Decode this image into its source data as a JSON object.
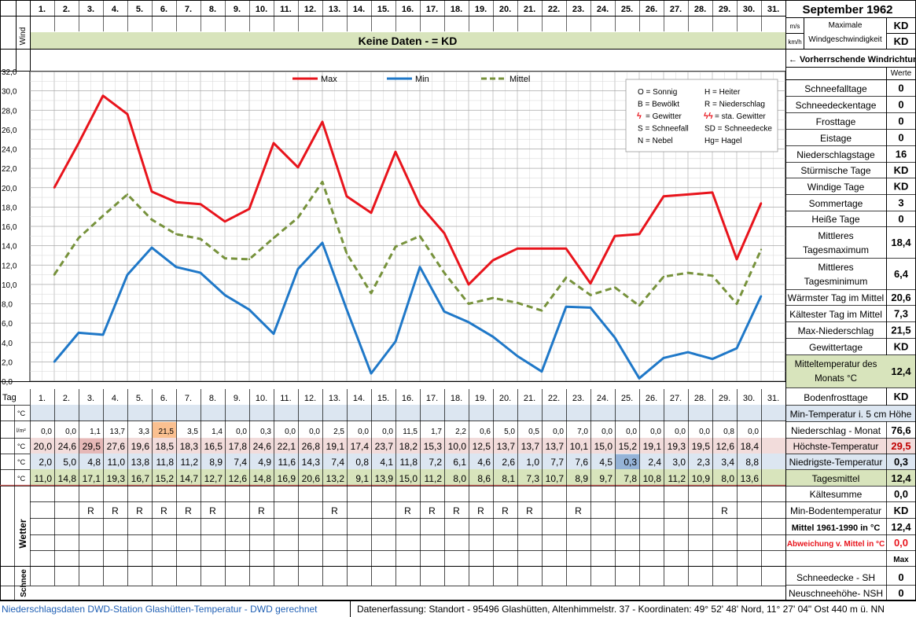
{
  "title": "September 1962",
  "wind": {
    "row_label": "Wind",
    "unit_ms": "m/s",
    "unit_kmh": "km/h",
    "max_label_1": "Maximale",
    "max_label_2": "Windgeschwindigkeit",
    "max_value": "KD",
    "max_value_2": "KD",
    "banner": "Keine Daten -  = KD",
    "direction_label": "← Vorherrschende Windrichtung"
  },
  "day_labels": [
    "1.",
    "2.",
    "3.",
    "4.",
    "5.",
    "6.",
    "7.",
    "8.",
    "9.",
    "10.",
    "11.",
    "12.",
    "13.",
    "14.",
    "15.",
    "16.",
    "17.",
    "18.",
    "19.",
    "20.",
    "21.",
    "22.",
    "23.",
    "24.",
    "25.",
    "26.",
    "27.",
    "28.",
    "29.",
    "30.",
    "31."
  ],
  "legend_box": [
    [
      "O = Sonnig",
      "H = Heiter"
    ],
    [
      "B = Bewölkt",
      "R = Niederschlag"
    ],
    [
      "= Gewitter",
      "= sta. Gewitter"
    ],
    [
      "S = Schneefall",
      "SD = Schneedecke"
    ],
    [
      "N = Nebel",
      "Hg= Hagel"
    ]
  ],
  "chart_data": {
    "type": "line",
    "x": [
      1,
      2,
      3,
      4,
      5,
      6,
      7,
      8,
      9,
      10,
      11,
      12,
      13,
      14,
      15,
      16,
      17,
      18,
      19,
      20,
      21,
      22,
      23,
      24,
      25,
      26,
      27,
      28,
      29,
      30
    ],
    "ylim": [
      0,
      32
    ],
    "y_ticks": [
      "0,0",
      "2,0",
      "4,0",
      "6,0",
      "8,0",
      "10,0",
      "12,0",
      "14,0",
      "16,0",
      "18,0",
      "20,0",
      "22,0",
      "24,0",
      "26,0",
      "28,0",
      "30,0",
      "32,0"
    ],
    "grid": true,
    "legend_position": "top",
    "series": [
      {
        "name": "Max",
        "color": "#e8141c",
        "style": "solid",
        "values": [
          20.0,
          24.6,
          29.5,
          27.6,
          19.6,
          18.5,
          18.3,
          16.5,
          17.8,
          24.6,
          22.1,
          26.8,
          19.1,
          17.4,
          23.7,
          18.2,
          15.3,
          10.0,
          12.5,
          13.7,
          13.7,
          13.7,
          10.1,
          15.0,
          15.2,
          19.1,
          19.3,
          19.5,
          12.6,
          18.4
        ]
      },
      {
        "name": "Min",
        "color": "#1f78c8",
        "style": "solid",
        "values": [
          2.0,
          5.0,
          4.8,
          11.0,
          13.8,
          11.8,
          11.2,
          8.9,
          7.4,
          4.9,
          11.6,
          14.3,
          7.4,
          0.8,
          4.1,
          11.8,
          7.2,
          6.1,
          4.6,
          2.6,
          1.0,
          7.7,
          7.6,
          4.5,
          0.3,
          2.4,
          3.0,
          2.3,
          3.4,
          8.8
        ]
      },
      {
        "name": "Mittel",
        "color": "#77923c",
        "style": "dashed",
        "values": [
          11.0,
          14.8,
          17.1,
          19.3,
          16.7,
          15.2,
          14.7,
          12.7,
          12.6,
          14.8,
          16.9,
          20.6,
          13.2,
          9.1,
          13.9,
          15.0,
          11.2,
          8.0,
          8.6,
          8.1,
          7.3,
          10.7,
          8.9,
          9.7,
          7.8,
          10.8,
          11.2,
          10.9,
          8.0,
          13.6
        ]
      }
    ]
  },
  "table": {
    "tag_label": "Tag",
    "unit_c": "°C",
    "unit_lm": "l/m²",
    "precip": [
      "0,0",
      "0,0",
      "1,1",
      "13,7",
      "3,3",
      "21,5",
      "3,5",
      "1,4",
      "0,0",
      "0,3",
      "0,0",
      "0,0",
      "2,5",
      "0,0",
      "0,0",
      "11,5",
      "1,7",
      "2,2",
      "0,6",
      "5,0",
      "0,5",
      "0,0",
      "7,0",
      "0,0",
      "0,0",
      "0,0",
      "0,0",
      "0,0",
      "0,8",
      "0,0",
      ""
    ],
    "tmax": [
      "20,0",
      "24,6",
      "29,5",
      "27,6",
      "19,6",
      "18,5",
      "18,3",
      "16,5",
      "17,8",
      "24,6",
      "22,1",
      "26,8",
      "19,1",
      "17,4",
      "23,7",
      "18,2",
      "15,3",
      "10,0",
      "12,5",
      "13,7",
      "13,7",
      "13,7",
      "10,1",
      "15,0",
      "15,2",
      "19,1",
      "19,3",
      "19,5",
      "12,6",
      "18,4",
      ""
    ],
    "tmin": [
      "2,0",
      "5,0",
      "4,8",
      "11,0",
      "13,8",
      "11,8",
      "11,2",
      "8,9",
      "7,4",
      "4,9",
      "11,6",
      "14,3",
      "7,4",
      "0,8",
      "4,1",
      "11,8",
      "7,2",
      "6,1",
      "4,6",
      "2,6",
      "1,0",
      "7,7",
      "7,6",
      "4,5",
      "0,3",
      "2,4",
      "3,0",
      "2,3",
      "3,4",
      "8,8",
      ""
    ],
    "tmean": [
      "11,0",
      "14,8",
      "17,1",
      "19,3",
      "16,7",
      "15,2",
      "14,7",
      "12,7",
      "12,6",
      "14,8",
      "16,9",
      "20,6",
      "13,2",
      "9,1",
      "13,9",
      "15,0",
      "11,2",
      "8,0",
      "8,6",
      "8,1",
      "7,3",
      "10,7",
      "8,9",
      "9,7",
      "7,8",
      "10,8",
      "11,2",
      "10,9",
      "8,0",
      "13,6",
      ""
    ],
    "wetter_label": "Wetter",
    "schnee_label": "Schnee",
    "wetter": [
      "",
      "",
      "R",
      "R",
      "R",
      "R",
      "R",
      "R",
      "",
      "R",
      "",
      "",
      "R",
      "",
      "",
      "R",
      "R",
      "R",
      "R",
      "R",
      "R",
      "",
      "R",
      "",
      "",
      "",
      "",
      "",
      "R",
      "",
      ""
    ]
  },
  "stats": {
    "werte_label": "Werte",
    "rows": [
      {
        "label": "Schneefalltage",
        "value": "0"
      },
      {
        "label": "Schneedeckentage",
        "value": "0"
      },
      {
        "label": "Frosttage",
        "value": "0"
      },
      {
        "label": "Eistage",
        "value": "0"
      },
      {
        "label": "Niederschlagstage",
        "value": "16"
      },
      {
        "label": "Stürmische Tage",
        "value": "KD"
      },
      {
        "label": "Windige Tage",
        "value": "KD"
      },
      {
        "label": "Sommertage",
        "value": "3"
      },
      {
        "label": "Heiße Tage",
        "value": "0"
      },
      {
        "label": "Mittleres Tagesmaximum",
        "value": "18,4"
      },
      {
        "label": "Mittleres Tagesminimum",
        "value": "6,4"
      },
      {
        "label": "Wärmster Tag im Mittel",
        "value": "20,6"
      },
      {
        "label": "Kältester Tag im Mittel",
        "value": "7,3"
      },
      {
        "label": "Max-Niederschlag",
        "value": "21,5"
      },
      {
        "label": "Gewittertage",
        "value": "KD"
      },
      {
        "label": "Mitteltemperatur des Monats °C",
        "value": "12,4"
      },
      {
        "label": "Bodenfrosttage",
        "value": "KD"
      }
    ],
    "lower": [
      {
        "label": "Min-Temperatur i. 5 cm Höhe",
        "value": ""
      },
      {
        "label": "Niederschlag - Monat",
        "value": "76,6"
      },
      {
        "label": "Höchste-Temperatur",
        "value": "29,5"
      },
      {
        "label": "Niedrigste-Temperatur",
        "value": "0,3"
      },
      {
        "label": "Tagesmittel",
        "value": "12,4"
      },
      {
        "label": "Kältesumme",
        "value": "0,0"
      },
      {
        "label": "Min-Bodentemperatur",
        "value": "KD"
      },
      {
        "label": "Mittel 1961-1990 in °C",
        "value": "12,4"
      },
      {
        "label": "Abweichung v. Mittel in °C",
        "value": "0,0"
      },
      {
        "label": "",
        "value": "Max"
      },
      {
        "label": "Schneedecke -   SH",
        "value": "0"
      },
      {
        "label": "Neuschneehöhe- NSH",
        "value": "0"
      }
    ]
  },
  "footer": {
    "left": "Niederschlagsdaten DWD-Station Glashütten-Temperatur -  DWD gerechnet",
    "right": "Datenerfassung:  Standort -  95496  Glashütten, Altenhimmelstr. 37 - Koordinaten:  49° 52' 48' Nord,   11° 27' 04\" Ost   440 m ü. NN"
  },
  "colors": {
    "banner_bg": "#d8e4bc",
    "row_blue": "#dce6f1",
    "row_pink": "#f2dcdb",
    "row_green": "#d8e4bc",
    "highlight_orange": "#fac090",
    "highlight_red": "#e6b8b7",
    "highlight_blue": "#95b3d7"
  }
}
